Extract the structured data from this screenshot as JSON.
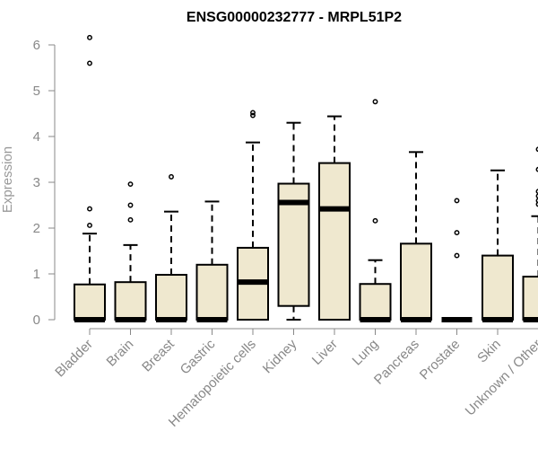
{
  "chart_data": {
    "type": "box",
    "title": "ENSG00000232777 - MRPL51P2",
    "xlabel": "",
    "ylabel": "Expression",
    "ylim": [
      0,
      6.4
    ],
    "yticks": [
      0,
      1,
      2,
      3,
      4,
      5,
      6
    ],
    "grid": false,
    "box_color": "#efe8cf",
    "categories": [
      "Bladder",
      "Brain",
      "Breast",
      "Gastric",
      "Hematopoietic cells",
      "Kidney",
      "Liver",
      "Lung",
      "Pancreas",
      "Prostate",
      "Skin",
      "Unknown / Other"
    ],
    "boxes": [
      {
        "q1": 0,
        "median": 0,
        "q3": 0.77,
        "whisker_low": 0,
        "whisker_high": 1.88,
        "outliers": [
          2.06,
          2.42,
          5.6,
          6.16
        ]
      },
      {
        "q1": 0,
        "median": 0,
        "q3": 0.82,
        "whisker_low": 0,
        "whisker_high": 1.63,
        "outliers": [
          2.18,
          2.5,
          2.96
        ]
      },
      {
        "q1": 0,
        "median": 0,
        "q3": 0.98,
        "whisker_low": 0,
        "whisker_high": 2.36,
        "outliers": [
          3.12
        ]
      },
      {
        "q1": 0,
        "median": 0,
        "q3": 1.2,
        "whisker_low": 0,
        "whisker_high": 2.58,
        "outliers": []
      },
      {
        "q1": 0,
        "median": 0.82,
        "q3": 1.57,
        "whisker_low": 0,
        "whisker_high": 3.87,
        "outliers": [
          4.46,
          4.52
        ]
      },
      {
        "q1": 0.3,
        "median": 2.56,
        "q3": 2.97,
        "whisker_low": 0,
        "whisker_high": 4.3,
        "outliers": []
      },
      {
        "q1": 0,
        "median": 2.42,
        "q3": 3.42,
        "whisker_low": 0,
        "whisker_high": 4.44,
        "outliers": []
      },
      {
        "q1": 0,
        "median": 0,
        "q3": 0.78,
        "whisker_low": 0,
        "whisker_high": 1.3,
        "outliers": [
          2.16,
          4.76
        ]
      },
      {
        "q1": 0,
        "median": 0,
        "q3": 1.66,
        "whisker_low": 0,
        "whisker_high": 3.66,
        "outliers": []
      },
      {
        "q1": 0,
        "median": 0,
        "q3": 0,
        "whisker_low": 0,
        "whisker_high": 0,
        "outliers": [
          1.4,
          1.9,
          2.6
        ]
      },
      {
        "q1": 0,
        "median": 0,
        "q3": 1.4,
        "whisker_low": 0,
        "whisker_high": 3.26,
        "outliers": []
      },
      {
        "q1": 0,
        "median": 0,
        "q3": 0.94,
        "whisker_low": 0,
        "whisker_high": 2.26,
        "outliers": [
          2.52,
          2.6,
          2.7,
          2.8,
          3.28,
          3.72
        ]
      }
    ]
  }
}
